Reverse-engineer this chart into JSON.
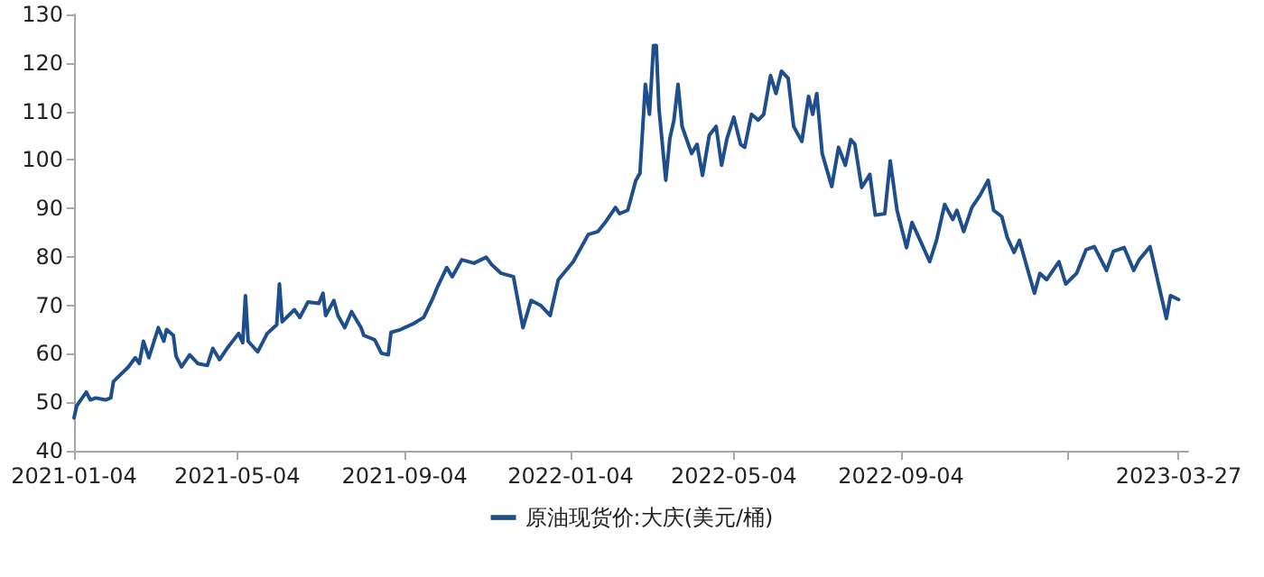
{
  "chart_data": {
    "type": "line",
    "legend": "bottom",
    "grid": false,
    "marker": "none",
    "line_style": "solid",
    "xlim": [
      "2021-01-04",
      "2023-04-03"
    ],
    "xticks": [
      "2021-01-04",
      "2021-05-04",
      "2021-09-04",
      "2022-01-04",
      "2022-05-04",
      "2022-09-04",
      {
        "value": "2023-01-04",
        "label": null
      },
      "2023-03-27"
    ],
    "ylim": [
      40,
      130
    ],
    "yticks": [
      40,
      50,
      60,
      70,
      80,
      90,
      100,
      110,
      120,
      130
    ],
    "series": [
      {
        "name": "原油现货价:大庆(美元/桶)",
        "color": "#1f4e8c",
        "x": [
          "2021-01-04",
          "2021-01-06",
          "2021-01-09",
          "2021-01-13",
          "2021-01-16",
          "2021-01-20",
          "2021-01-27",
          "2021-01-31",
          "2021-02-02",
          "2021-02-13",
          "2021-02-18",
          "2021-02-21",
          "2021-02-24",
          "2021-02-28",
          "2021-03-07",
          "2021-03-11",
          "2021-03-13",
          "2021-03-18",
          "2021-03-20",
          "2021-03-24",
          "2021-03-30",
          "2021-04-05",
          "2021-04-12",
          "2021-04-16",
          "2021-04-21",
          "2021-04-27",
          "2021-05-05",
          "2021-05-08",
          "2021-05-10",
          "2021-05-12",
          "2021-05-19",
          "2021-05-26",
          "2021-06-02",
          "2021-06-04",
          "2021-06-06",
          "2021-06-15",
          "2021-06-19",
          "2021-06-25",
          "2021-07-03",
          "2021-07-06",
          "2021-07-08",
          "2021-07-14",
          "2021-07-17",
          "2021-07-22",
          "2021-07-27",
          "2021-08-03",
          "2021-08-05",
          "2021-08-13",
          "2021-08-18",
          "2021-08-23",
          "2021-08-25",
          "2021-09-01",
          "2021-09-11",
          "2021-09-18",
          "2021-09-25",
          "2021-09-28",
          "2021-10-05",
          "2021-10-09",
          "2021-10-16",
          "2021-10-25",
          "2021-11-03",
          "2021-11-07",
          "2021-11-14",
          "2021-11-23",
          "2021-11-30",
          "2021-12-06",
          "2021-12-13",
          "2021-12-20",
          "2021-12-26",
          "2022-01-06",
          "2022-01-17",
          "2022-01-24",
          "2022-01-30",
          "2022-02-06",
          "2022-02-09",
          "2022-02-15",
          "2022-02-21",
          "2022-02-24",
          "2022-02-28",
          "2022-03-03",
          "2022-03-06",
          "2022-03-08",
          "2022-03-10",
          "2022-03-15",
          "2022-03-18",
          "2022-03-21",
          "2022-03-24",
          "2022-03-27",
          "2022-04-03",
          "2022-04-07",
          "2022-04-11",
          "2022-04-16",
          "2022-04-21",
          "2022-04-25",
          "2022-04-29",
          "2022-05-04",
          "2022-05-09",
          "2022-05-12",
          "2022-05-17",
          "2022-05-22",
          "2022-05-26",
          "2022-05-31",
          "2022-06-04",
          "2022-06-08",
          "2022-06-13",
          "2022-06-17",
          "2022-06-23",
          "2022-06-28",
          "2022-07-01",
          "2022-07-04",
          "2022-07-08",
          "2022-07-15",
          "2022-07-20",
          "2022-07-25",
          "2022-07-29",
          "2022-08-01",
          "2022-08-06",
          "2022-08-12",
          "2022-08-16",
          "2022-08-23",
          "2022-08-27",
          "2022-09-01",
          "2022-09-08",
          "2022-09-12",
          "2022-09-18",
          "2022-09-25",
          "2022-09-30",
          "2022-10-06",
          "2022-10-12",
          "2022-10-15",
          "2022-10-20",
          "2022-10-26",
          "2022-11-01",
          "2022-11-07",
          "2022-11-11",
          "2022-11-17",
          "2022-11-21",
          "2022-11-26",
          "2022-11-30",
          "2022-12-05",
          "2022-12-11",
          "2022-12-15",
          "2022-12-20",
          "2022-12-29",
          "2023-01-03",
          "2023-01-11",
          "2023-01-18",
          "2023-01-24",
          "2023-02-02",
          "2023-02-07",
          "2023-02-15",
          "2023-02-22",
          "2023-02-26",
          "2023-03-06",
          "2023-03-11",
          "2023-03-18",
          "2023-03-21",
          "2023-03-27"
        ],
        "values": [
          46.8,
          49.3,
          50.5,
          52.1,
          50.5,
          50.9,
          50.5,
          50.9,
          54.3,
          57.3,
          59.2,
          58.0,
          62.6,
          59.2,
          65.4,
          62.6,
          65.0,
          63.8,
          59.5,
          57.3,
          59.8,
          58.0,
          57.6,
          61.1,
          58.8,
          61.3,
          64.2,
          62.3,
          72.0,
          62.6,
          60.4,
          64.2,
          66.0,
          74.4,
          66.6,
          69.1,
          67.5,
          70.7,
          70.4,
          72.5,
          67.9,
          71.0,
          67.9,
          65.4,
          68.7,
          65.4,
          63.8,
          62.9,
          60.1,
          59.8,
          64.4,
          65.0,
          66.3,
          67.5,
          71.6,
          73.7,
          77.8,
          75.9,
          79.4,
          78.7,
          79.9,
          78.4,
          76.6,
          75.9,
          65.4,
          71.0,
          70.0,
          67.9,
          75.3,
          79.0,
          84.6,
          85.2,
          87.3,
          90.2,
          88.9,
          89.6,
          95.8,
          97.2,
          115.6,
          109.4,
          123.6,
          123.6,
          110.6,
          95.8,
          104.4,
          108.2,
          115.6,
          106.9,
          101.3,
          103.2,
          96.8,
          105.1,
          106.9,
          98.9,
          104.4,
          108.8,
          103.2,
          102.6,
          109.4,
          108.2,
          109.4,
          117.4,
          113.7,
          118.3,
          116.8,
          106.9,
          103.8,
          113.1,
          109.4,
          113.7,
          101.3,
          94.5,
          102.6,
          98.9,
          104.2,
          103.2,
          94.3,
          97.0,
          88.6,
          88.9,
          99.8,
          89.6,
          81.9,
          87.1,
          83.4,
          79.0,
          83.4,
          90.8,
          87.7,
          89.6,
          85.2,
          90.2,
          92.7,
          95.8,
          89.6,
          88.3,
          84.0,
          80.9,
          83.4,
          78.4,
          72.5,
          76.6,
          75.3,
          79.0,
          74.4,
          76.6,
          81.5,
          82.1,
          77.2,
          81.1,
          81.9,
          77.2,
          79.4,
          82.1,
          75.9,
          67.3,
          72.0,
          71.2
        ]
      }
    ]
  }
}
